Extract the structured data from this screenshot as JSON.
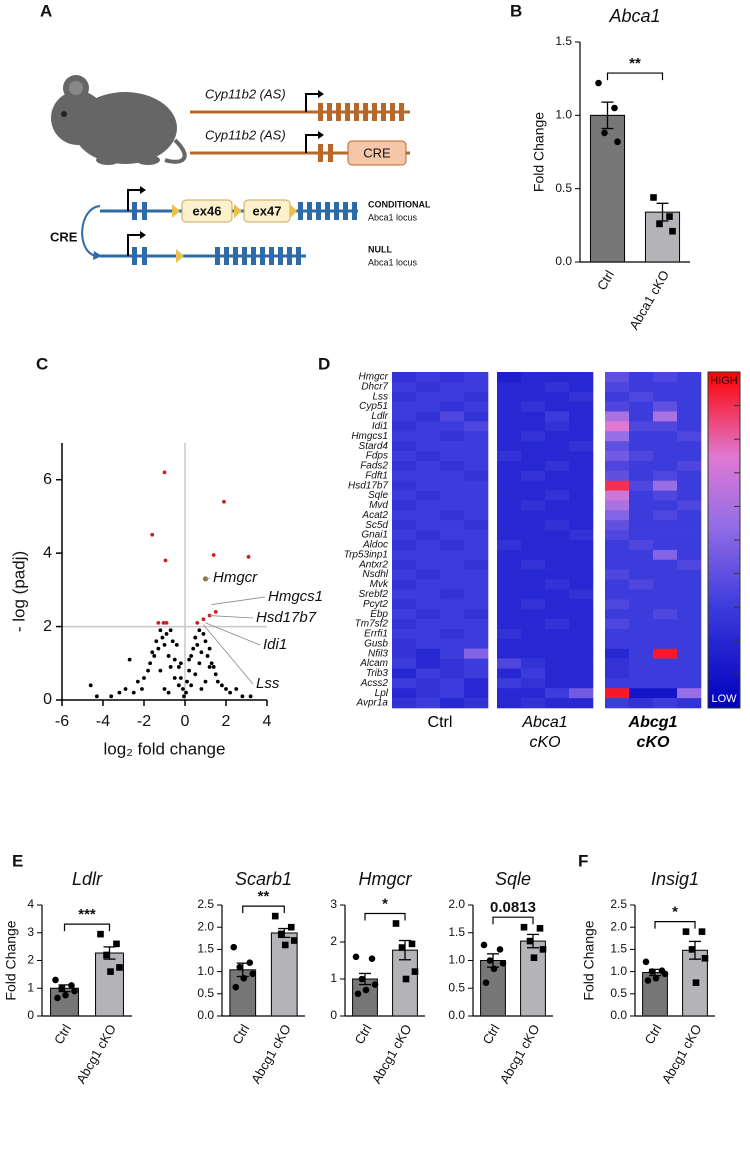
{
  "panel_labels": [
    "A",
    "B",
    "C",
    "D",
    "E",
    "F"
  ],
  "diagram": {
    "gene_rows": [
      "Cyp11b2 (AS)",
      "Cyp11b2 (AS)"
    ],
    "cre_box": "CRE",
    "exons": [
      "ex46",
      "ex47"
    ],
    "loci": [
      {
        "name": "CONDITIONAL",
        "sub": "Abca1 locus"
      },
      {
        "name": "NULL",
        "sub": "Abca1 locus"
      }
    ],
    "recombinase": "CRE"
  },
  "chart_data": [
    {
      "type": "bar",
      "title": "Abca1",
      "ylabel": "Fold Change",
      "categories": [
        "Ctrl",
        "Abca1 cKO"
      ],
      "values": [
        1.0,
        0.34
      ],
      "errors": [
        0.09,
        0.06
      ],
      "points": [
        [
          1.22,
          1.05,
          0.88,
          0.82
        ],
        [
          0.44,
          0.31,
          0.26,
          0.21
        ]
      ],
      "colors": [
        "#777777",
        "#b3b3b8"
      ],
      "significance": "**",
      "ylim": [
        0,
        1.5
      ],
      "yticks": [
        {
          "value": 0,
          "label": "0.0"
        },
        0.5,
        {
          "value": 1,
          "label": "1.0"
        },
        1.5
      ]
    },
    {
      "type": "scatter",
      "xlabel": "log₂ fold change",
      "ylabel": "- log (padj)",
      "xlim": [
        -6,
        4
      ],
      "xticks": [
        -6,
        -4,
        -2,
        0,
        2,
        4
      ],
      "ylim": [
        0,
        7
      ],
      "yticks": [
        0,
        2,
        4,
        6
      ],
      "threshold_x": 0,
      "threshold_y": 2,
      "series": [
        {
          "color": "#000000",
          "x": [
            -4.6,
            -4.3,
            -3.6,
            -3.2,
            -2.9,
            -2.7,
            -2.5,
            -2.3,
            -2.1,
            -2.0,
            -1.8,
            -1.7,
            -1.6,
            -1.5,
            -1.4,
            -1.3,
            -1.2,
            -1.1,
            -1.0,
            -0.9,
            -0.8,
            -0.7,
            -0.6,
            -0.5,
            -0.4,
            -0.3,
            -0.2,
            -0.1,
            -0.05,
            0.05,
            0.1,
            0.2,
            0.3,
            0.4,
            0.5,
            0.6,
            0.7,
            0.8,
            0.9,
            1.0,
            1.1,
            1.2,
            1.3,
            1.4,
            1.5,
            1.6,
            1.8,
            2.0,
            2.2,
            2.5,
            2.8,
            3.2,
            -0.3,
            -0.5,
            -0.7,
            -1.0,
            0.3,
            0.5,
            0.7,
            1.0,
            -0.2,
            0.2,
            -0.8,
            0.8,
            -1.2,
            1.2
          ],
          "values": [
            0.4,
            0.1,
            0.1,
            0.2,
            0.3,
            1.1,
            0.2,
            0.5,
            0.3,
            0.6,
            0.8,
            1.0,
            1.3,
            1.2,
            1.6,
            1.4,
            1.9,
            1.7,
            1.5,
            1.8,
            1.2,
            1.9,
            1.6,
            1.1,
            1.5,
            0.9,
            0.6,
            0.3,
            0.1,
            0.2,
            0.5,
            0.8,
            1.2,
            1.4,
            1.7,
            1.5,
            1.9,
            1.3,
            1.8,
            1.6,
            1.2,
            1.4,
            1.0,
            0.9,
            0.7,
            0.5,
            0.4,
            0.3,
            0.2,
            0.3,
            0.1,
            0.1,
            0.4,
            0.6,
            0.9,
            0.3,
            0.4,
            0.7,
            1.0,
            0.5,
            1.0,
            1.1,
            0.2,
            0.3,
            0.8,
            0.9
          ]
        },
        {
          "color": "#cc2020",
          "x": [
            -1.0,
            -1.6,
            -0.95,
            1.9,
            3.1,
            1.4,
            -1.3,
            -1.05,
            -0.9,
            0.6,
            0.9,
            1.5,
            1.2
          ],
          "values": [
            6.2,
            4.5,
            3.8,
            5.4,
            3.9,
            3.95,
            2.1,
            2.1,
            2.1,
            2.1,
            2.2,
            2.4,
            2.3
          ]
        },
        {
          "color": "#8a7a3a",
          "x": [
            1.0
          ],
          "values": [
            3.3
          ]
        }
      ],
      "annotations": [
        {
          "text": "Hmgcr",
          "x": 1.0,
          "y": 3.3
        },
        {
          "text": "Hmgcs1",
          "x": 1.3,
          "y": 2.6
        },
        {
          "text": "Hsd17b7",
          "x": 1.2,
          "y": 2.3
        },
        {
          "text": "Idi1",
          "x": 1.0,
          "y": 2.1
        },
        {
          "text": "Lss",
          "x": 0.9,
          "y": 2.05
        }
      ]
    },
    {
      "type": "heatmap",
      "groups": [
        "Ctrl",
        "Abca1 cKO",
        "Abcg1 cKO"
      ],
      "zlim": [
        0,
        1
      ],
      "colorbar": {
        "high": "HIGH",
        "low": "LOW"
      },
      "rows": [
        "Hmgcr",
        "Dhcr7",
        "Lss",
        "Cyp51",
        "Ldlr",
        "Idi1",
        "Hmgcs1",
        "Stard4",
        "Fdps",
        "Fads2",
        "Fdft1",
        "Hsd17b7",
        "Sqle",
        "Mvd",
        "Acat2",
        "Sc5d",
        "Gnai1",
        "Aldoc",
        "Trp53inp1",
        "Antxr2",
        "Nsdhl",
        "Mvk",
        "Srebf2",
        "Pcyt2",
        "Ebp",
        "Tm7sf2",
        "Errfi1",
        "Gusb",
        "Nfil3",
        "Alcam",
        "Trib3",
        "Acss2",
        "Lpl",
        "Avpr1a"
      ],
      "values": [
        [
          0.25,
          0.3,
          0.25,
          0.3,
          0.15,
          0.2,
          0.2,
          0.2,
          0.4,
          0.3,
          0.35,
          0.3
        ],
        [
          0.3,
          0.25,
          0.3,
          0.3,
          0.2,
          0.2,
          0.25,
          0.2,
          0.35,
          0.3,
          0.3,
          0.3
        ],
        [
          0.25,
          0.3,
          0.3,
          0.25,
          0.2,
          0.2,
          0.2,
          0.25,
          0.3,
          0.35,
          0.3,
          0.3
        ],
        [
          0.3,
          0.3,
          0.25,
          0.3,
          0.2,
          0.25,
          0.2,
          0.2,
          0.35,
          0.3,
          0.4,
          0.3
        ],
        [
          0.3,
          0.25,
          0.35,
          0.25,
          0.2,
          0.2,
          0.3,
          0.2,
          0.6,
          0.3,
          0.6,
          0.3
        ],
        [
          0.25,
          0.3,
          0.3,
          0.35,
          0.2,
          0.2,
          0.25,
          0.2,
          0.75,
          0.35,
          0.35,
          0.3
        ],
        [
          0.3,
          0.3,
          0.25,
          0.3,
          0.2,
          0.25,
          0.2,
          0.2,
          0.55,
          0.3,
          0.3,
          0.35
        ],
        [
          0.25,
          0.3,
          0.3,
          0.3,
          0.2,
          0.2,
          0.2,
          0.25,
          0.4,
          0.3,
          0.3,
          0.3
        ],
        [
          0.3,
          0.25,
          0.3,
          0.3,
          0.25,
          0.2,
          0.2,
          0.2,
          0.45,
          0.35,
          0.3,
          0.3
        ],
        [
          0.25,
          0.3,
          0.25,
          0.3,
          0.2,
          0.2,
          0.25,
          0.2,
          0.35,
          0.3,
          0.3,
          0.35
        ],
        [
          0.3,
          0.3,
          0.3,
          0.25,
          0.2,
          0.25,
          0.2,
          0.2,
          0.4,
          0.3,
          0.35,
          0.3
        ],
        [
          0.25,
          0.3,
          0.3,
          0.3,
          0.2,
          0.2,
          0.2,
          0.2,
          0.9,
          0.35,
          0.55,
          0.3
        ],
        [
          0.3,
          0.25,
          0.3,
          0.3,
          0.2,
          0.2,
          0.25,
          0.2,
          0.7,
          0.3,
          0.35,
          0.3
        ],
        [
          0.25,
          0.3,
          0.3,
          0.3,
          0.2,
          0.25,
          0.2,
          0.2,
          0.6,
          0.3,
          0.3,
          0.35
        ],
        [
          0.3,
          0.3,
          0.25,
          0.3,
          0.2,
          0.2,
          0.2,
          0.2,
          0.5,
          0.3,
          0.35,
          0.3
        ],
        [
          0.25,
          0.3,
          0.3,
          0.25,
          0.2,
          0.2,
          0.25,
          0.2,
          0.4,
          0.3,
          0.3,
          0.3
        ],
        [
          0.3,
          0.25,
          0.3,
          0.3,
          0.2,
          0.2,
          0.2,
          0.25,
          0.35,
          0.3,
          0.3,
          0.3
        ],
        [
          0.25,
          0.3,
          0.25,
          0.3,
          0.25,
          0.2,
          0.2,
          0.2,
          0.3,
          0.35,
          0.3,
          0.3
        ],
        [
          0.3,
          0.3,
          0.3,
          0.3,
          0.2,
          0.2,
          0.2,
          0.2,
          0.3,
          0.3,
          0.5,
          0.3
        ],
        [
          0.25,
          0.3,
          0.3,
          0.25,
          0.2,
          0.25,
          0.2,
          0.2,
          0.3,
          0.3,
          0.3,
          0.35
        ],
        [
          0.3,
          0.25,
          0.3,
          0.3,
          0.2,
          0.2,
          0.2,
          0.2,
          0.35,
          0.3,
          0.3,
          0.3
        ],
        [
          0.25,
          0.3,
          0.3,
          0.3,
          0.2,
          0.2,
          0.25,
          0.2,
          0.3,
          0.35,
          0.3,
          0.3
        ],
        [
          0.3,
          0.3,
          0.25,
          0.3,
          0.2,
          0.2,
          0.2,
          0.25,
          0.3,
          0.3,
          0.3,
          0.3
        ],
        [
          0.25,
          0.3,
          0.3,
          0.3,
          0.2,
          0.25,
          0.2,
          0.2,
          0.35,
          0.3,
          0.3,
          0.3
        ],
        [
          0.3,
          0.25,
          0.3,
          0.25,
          0.2,
          0.2,
          0.2,
          0.2,
          0.3,
          0.3,
          0.35,
          0.3
        ],
        [
          0.25,
          0.3,
          0.3,
          0.3,
          0.2,
          0.2,
          0.25,
          0.2,
          0.35,
          0.3,
          0.3,
          0.3
        ],
        [
          0.3,
          0.3,
          0.25,
          0.3,
          0.25,
          0.2,
          0.2,
          0.2,
          0.3,
          0.3,
          0.3,
          0.3
        ],
        [
          0.25,
          0.3,
          0.3,
          0.3,
          0.2,
          0.2,
          0.2,
          0.2,
          0.3,
          0.3,
          0.3,
          0.3
        ],
        [
          0.25,
          0.2,
          0.3,
          0.5,
          0.2,
          0.2,
          0.2,
          0.2,
          0.2,
          0.3,
          0.95,
          0.3
        ],
        [
          0.3,
          0.2,
          0.25,
          0.3,
          0.35,
          0.25,
          0.2,
          0.2,
          0.25,
          0.3,
          0.3,
          0.3
        ],
        [
          0.2,
          0.3,
          0.25,
          0.3,
          0.2,
          0.3,
          0.2,
          0.2,
          0.25,
          0.3,
          0.3,
          0.3
        ],
        [
          0.3,
          0.25,
          0.3,
          0.2,
          0.3,
          0.25,
          0.2,
          0.2,
          0.3,
          0.3,
          0.3,
          0.3
        ],
        [
          0.2,
          0.25,
          0.3,
          0.2,
          0.2,
          0.2,
          0.3,
          0.45,
          0.95,
          0.1,
          0.1,
          0.55
        ],
        [
          0.25,
          0.3,
          0.2,
          0.25,
          0.2,
          0.25,
          0.2,
          0.2,
          0.3,
          0.25,
          0.3,
          0.25
        ]
      ]
    },
    {
      "type": "bar",
      "title": "Ldlr",
      "ylabel": "Fold Change",
      "categories": [
        "Ctrl",
        "Abcg1 cKO"
      ],
      "values": [
        1.0,
        2.27
      ],
      "errors": [
        0.12,
        0.22
      ],
      "points": [
        [
          1.3,
          1.1,
          1.0,
          0.9,
          0.75,
          0.65
        ],
        [
          2.95,
          2.6,
          2.2,
          1.75,
          1.6
        ]
      ],
      "colors": [
        "#777777",
        "#b3b3b8"
      ],
      "significance": "***",
      "ylim": [
        0,
        4
      ],
      "yticks": [
        0,
        1,
        2,
        3,
        4
      ]
    },
    {
      "type": "bar",
      "title": "Scarb1",
      "categories": [
        "Ctrl",
        "Abcg1 cKO"
      ],
      "values": [
        1.04,
        1.87
      ],
      "errors": [
        0.15,
        0.1
      ],
      "points": [
        [
          1.55,
          1.2,
          1.1,
          0.95,
          0.85,
          0.65
        ],
        [
          2.25,
          2.0,
          1.85,
          1.7,
          1.6
        ]
      ],
      "colors": [
        "#777777",
        "#b3b3b8"
      ],
      "significance": "**",
      "ylim": [
        0,
        2.5
      ],
      "yticks": [
        {
          "value": 0,
          "label": "0.0"
        },
        0.5,
        {
          "value": 1,
          "label": "1.0"
        },
        1.5,
        {
          "value": 2,
          "label": "2.0"
        },
        2.5
      ]
    },
    {
      "type": "bar",
      "title": "Hmgcr",
      "categories": [
        "Ctrl",
        "Abcg1 cKO"
      ],
      "values": [
        1.0,
        1.78
      ],
      "errors": [
        0.15,
        0.26
      ],
      "points": [
        [
          1.6,
          1.55,
          1.0,
          0.85,
          0.7,
          0.6
        ],
        [
          2.5,
          1.95,
          1.85,
          1.2,
          1.0
        ]
      ],
      "colors": [
        "#777777",
        "#b3b3b8"
      ],
      "significance": "*",
      "ylim": [
        0,
        3
      ],
      "yticks": [
        0,
        1,
        2,
        3
      ]
    },
    {
      "type": "bar",
      "title": "Sqle",
      "categories": [
        "Ctrl",
        "Abcg1 cKO"
      ],
      "values": [
        1.0,
        1.35
      ],
      "errors": [
        0.12,
        0.12
      ],
      "points": [
        [
          1.28,
          1.2,
          1.0,
          0.95,
          0.85,
          0.6
        ],
        [
          1.6,
          1.58,
          1.35,
          1.2,
          1.05
        ]
      ],
      "colors": [
        "#777777",
        "#b3b3b8"
      ],
      "significance": "0.0813",
      "ylim": [
        0,
        2
      ],
      "yticks": [
        {
          "value": 0,
          "label": "0.0"
        },
        0.5,
        {
          "value": 1,
          "label": "1.0"
        },
        1.5,
        {
          "value": 2,
          "label": "2.0"
        }
      ]
    },
    {
      "type": "bar",
      "title": "Insig1",
      "ylabel": "Fold Change",
      "categories": [
        "Ctrl",
        "Abcg1 cKO"
      ],
      "values": [
        0.98,
        1.48
      ],
      "errors": [
        0.07,
        0.2
      ],
      "points": [
        [
          1.22,
          1.02,
          1.0,
          0.95,
          0.85,
          0.8
        ],
        [
          1.9,
          1.9,
          1.5,
          1.3,
          0.75
        ]
      ],
      "colors": [
        "#777777",
        "#b3b3b8"
      ],
      "significance": "*",
      "ylim": [
        0,
        2.5
      ],
      "yticks": [
        {
          "value": 0,
          "label": "0.0"
        },
        0.5,
        {
          "value": 1,
          "label": "1.0"
        },
        1.5,
        {
          "value": 2,
          "label": "2.0"
        },
        2.5
      ]
    }
  ]
}
